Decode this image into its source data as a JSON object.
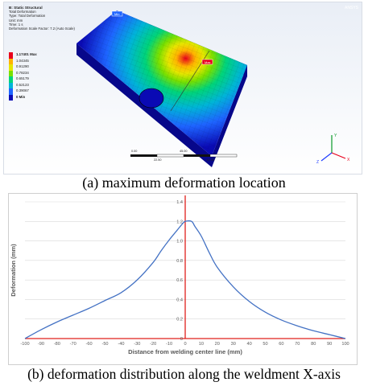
{
  "panel_a": {
    "caption": "(a) maximum deformation location",
    "legend_title_lines": [
      "B: Static Structural",
      "Total Deformation",
      "Type: Total Deformation",
      "Unit: mm",
      "Time: 1 s",
      "Deformation Scale Factor: 7.2 (Auto Scale)"
    ],
    "legend_entries": [
      {
        "label": "1.17401 Max",
        "color": "#e8001c"
      },
      {
        "label": "1.04345",
        "color": "#ffb400"
      },
      {
        "label": "0.91290",
        "color": "#e6e600"
      },
      {
        "label": "0.78234",
        "color": "#78e000"
      },
      {
        "label": "0.65179",
        "color": "#00d47a"
      },
      {
        "label": "0.52123",
        "color": "#00b4d8"
      },
      {
        "label": "0.39067",
        "color": "#1e64ff"
      },
      {
        "label": "0 Min",
        "color": "#0a0ab4"
      }
    ],
    "scale_bar_labels": [
      "0.00",
      "45.00",
      "22.50",
      "67.50"
    ],
    "max_marker": "Max",
    "min_marker": "Min",
    "vendor_text": "ANSYS",
    "axis_triad": {
      "x": "X",
      "y": "Y",
      "z": "Z"
    }
  },
  "panel_b": {
    "caption": "(b) deformation distribution along the weldment X-axis",
    "chart_data": {
      "type": "line",
      "title": "",
      "xlabel": "Distance from welding center line (mm)",
      "ylabel": "Deformation (mm)",
      "xlim": [
        -100,
        100
      ],
      "ylim": [
        0,
        1.4
      ],
      "xticks": [
        -100,
        -90,
        -80,
        -70,
        -60,
        -50,
        -40,
        -30,
        -20,
        -10,
        0,
        10,
        20,
        30,
        40,
        50,
        60,
        70,
        80,
        90,
        100
      ],
      "yticks": [
        0,
        0.2,
        0.4,
        0.6,
        0.8,
        1.0,
        1.2,
        1.4
      ],
      "ytick_labels": [
        "0",
        "0.2",
        "0.4",
        "0.6",
        "0.8",
        "1.0",
        "1.2",
        "1.4"
      ],
      "grid": true,
      "reference_lines": [
        {
          "axis": "x",
          "value": 0,
          "color": "#e0201c"
        },
        {
          "axis": "y",
          "value": 0,
          "color": "#e0201c"
        }
      ],
      "series": [
        {
          "color": "#4472c4",
          "x": [
            -100,
            -90,
            -80,
            -70,
            -60,
            -50,
            -40,
            -30,
            -20,
            -15,
            -10,
            -5,
            -2,
            0,
            4,
            6,
            10,
            15,
            20,
            30,
            40,
            50,
            60,
            70,
            80,
            90,
            100
          ],
          "y": [
            0.0,
            0.09,
            0.17,
            0.24,
            0.31,
            0.39,
            0.47,
            0.6,
            0.78,
            0.9,
            1.01,
            1.11,
            1.17,
            1.2,
            1.2,
            1.15,
            1.05,
            0.88,
            0.73,
            0.53,
            0.38,
            0.27,
            0.19,
            0.13,
            0.08,
            0.04,
            0.0
          ]
        }
      ]
    }
  }
}
